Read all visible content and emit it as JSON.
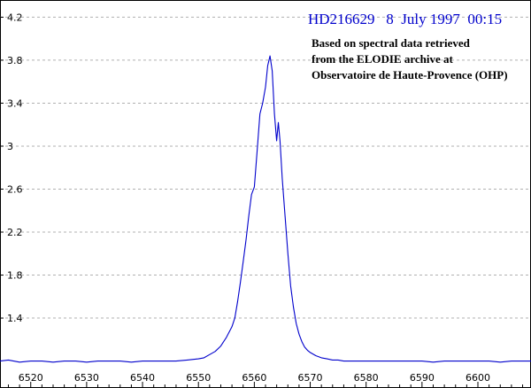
{
  "chart_data": {
    "type": "line",
    "title": "HD216629   8  July 1997  00:15",
    "annotation_lines": [
      "Based on spectral data retrieved",
      "from the ELODIE archive at",
      "Observatoire de Haute-Provence (OHP)"
    ],
    "xlabel": "",
    "ylabel": "",
    "xlim": [
      6514.5,
      6609.5
    ],
    "ylim": [
      0.98,
      4.36
    ],
    "x_ticks": [
      6520,
      6530,
      6540,
      6550,
      6560,
      6570,
      6580,
      6590,
      6600
    ],
    "x_tick_labels": [
      "6520",
      "6530",
      "6540",
      "6550",
      "6560",
      "6570",
      "6580",
      "6590",
      "6600"
    ],
    "y_ticks": [
      1.4,
      1.8,
      2.2,
      2.6,
      3.0,
      3.4,
      3.8,
      4.2
    ],
    "y_tick_labels": [
      "1.4",
      "1.8",
      "2.2",
      "2.6",
      "3",
      "3.4",
      "3.8",
      "4.2"
    ],
    "grid": "horizontal-dashed",
    "series": [
      {
        "color": "#0000cc",
        "x": [
          6514.5,
          6516.0,
          6518.0,
          6520.0,
          6522.0,
          6524.0,
          6526.0,
          6528.0,
          6530.0,
          6532.0,
          6534.0,
          6536.0,
          6538.0,
          6540.0,
          6542.0,
          6544.0,
          6546.0,
          6548.0,
          6550.0,
          6551.0,
          6552.0,
          6553.0,
          6554.0,
          6555.0,
          6556.0,
          6556.5,
          6557.0,
          6557.5,
          6558.0,
          6558.5,
          6559.0,
          6559.5,
          6560.0,
          6560.5,
          6561.0,
          6561.5,
          6562.0,
          6562.4,
          6562.8,
          6563.2,
          6563.6,
          6564.0,
          6564.3,
          6564.6,
          6565.0,
          6565.5,
          6566.0,
          6566.5,
          6567.0,
          6567.5,
          6568.0,
          6568.5,
          6569.0,
          6569.5,
          6570.0,
          6571.0,
          6572.0,
          6573.0,
          6574.0,
          6575.0,
          6576.0,
          6578.0,
          6580.0,
          6582.0,
          6584.0,
          6586.0,
          6588.0,
          6590.0,
          6592.0,
          6594.0,
          6596.0,
          6598.0,
          6600.0,
          6602.0,
          6604.0,
          6606.0,
          6608.0,
          6609.5
        ],
        "y": [
          1.0,
          1.01,
          0.99,
          1.0,
          1.0,
          0.99,
          1.0,
          1.0,
          0.99,
          1.0,
          1.0,
          1.0,
          0.99,
          1.0,
          1.0,
          1.0,
          1.0,
          1.01,
          1.02,
          1.03,
          1.06,
          1.09,
          1.14,
          1.22,
          1.32,
          1.4,
          1.55,
          1.73,
          1.92,
          2.12,
          2.35,
          2.55,
          2.62,
          2.95,
          3.3,
          3.4,
          3.55,
          3.75,
          3.84,
          3.7,
          3.3,
          3.05,
          3.22,
          3.05,
          2.7,
          2.35,
          2.0,
          1.7,
          1.5,
          1.35,
          1.25,
          1.18,
          1.13,
          1.1,
          1.08,
          1.05,
          1.03,
          1.02,
          1.01,
          1.01,
          1.0,
          1.0,
          1.0,
          1.0,
          1.0,
          1.0,
          1.0,
          1.0,
          0.99,
          1.0,
          1.0,
          1.0,
          1.0,
          1.0,
          0.99,
          1.0,
          1.0,
          1.0
        ]
      }
    ]
  }
}
